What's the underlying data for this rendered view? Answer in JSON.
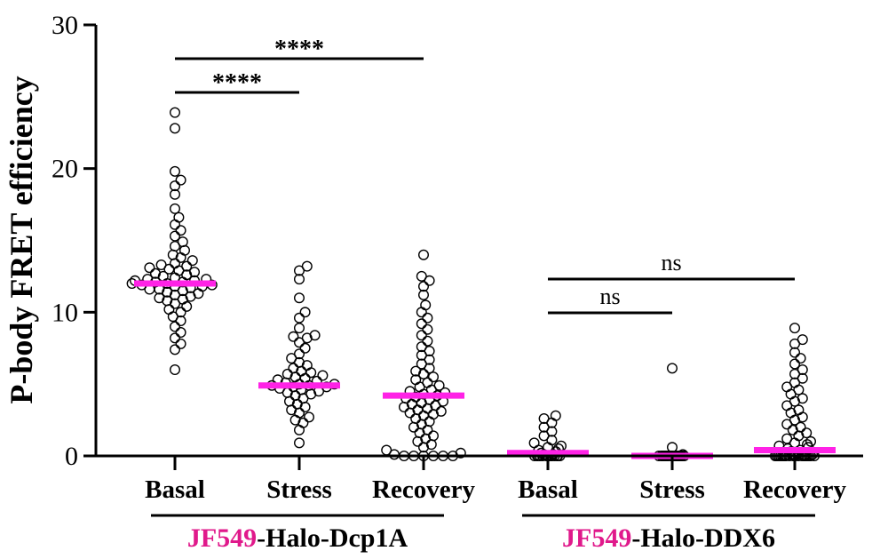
{
  "chart_data": {
    "type": "scatter",
    "subtype": "dot-plot-with-mean",
    "ylabel": "P-body FRET efficiency",
    "ylim": [
      0,
      30
    ],
    "yticks": [
      0,
      10,
      20,
      30
    ],
    "grid": false,
    "colors": {
      "points": "#000000",
      "mean": "#ff22e6",
      "accent": "#e0198b"
    },
    "categories": [
      "Basal",
      "Stress",
      "Recovery",
      "Basal",
      "Stress",
      "Recovery"
    ],
    "groups": [
      {
        "accent": "JF549",
        "rest": "-Halo-Dcp1A",
        "categories": [
          0,
          1,
          2
        ]
      },
      {
        "accent": "JF549",
        "rest": "-Halo-DDX6",
        "categories": [
          3,
          4,
          5
        ]
      }
    ],
    "series": [
      {
        "category": "Basal",
        "mean": 12.0,
        "spread": 9.0,
        "values": [
          23.9,
          22.8,
          19.8,
          19.2,
          18.8,
          18.2,
          17.2,
          16.6,
          16.1,
          15.7,
          15.3,
          14.9,
          14.6,
          14.3,
          14.0,
          13.8,
          13.6,
          13.4,
          13.3,
          13.2,
          13.1,
          13.0,
          12.9,
          12.8,
          12.7,
          12.6,
          12.5,
          12.4,
          12.3,
          12.3,
          12.2,
          12.2,
          12.1,
          12.1,
          12.0,
          12.0,
          11.9,
          11.9,
          11.8,
          11.8,
          11.7,
          11.6,
          11.6,
          11.5,
          11.4,
          11.3,
          11.2,
          11.1,
          11.0,
          10.9,
          10.8,
          10.6,
          10.4,
          10.2,
          10.0,
          9.7,
          9.4,
          9.0,
          8.6,
          8.2,
          7.8,
          7.4,
          6.0
        ]
      },
      {
        "category": "Stress",
        "mean": 4.9,
        "spread": 7.5,
        "values": [
          13.2,
          12.9,
          12.3,
          11.0,
          10.0,
          9.6,
          8.9,
          8.4,
          8.3,
          8.2,
          7.9,
          7.5,
          7.1,
          6.8,
          6.5,
          6.3,
          6.1,
          5.9,
          5.8,
          5.7,
          5.6,
          5.5,
          5.4,
          5.3,
          5.2,
          5.1,
          5.0,
          5.0,
          4.9,
          4.9,
          4.8,
          4.8,
          4.7,
          4.6,
          4.5,
          4.4,
          4.3,
          4.2,
          4.0,
          3.8,
          3.6,
          3.4,
          3.2,
          3.0,
          2.7,
          2.5,
          2.3,
          1.8,
          0.9
        ]
      },
      {
        "category": "Recovery",
        "mean": 4.2,
        "spread": 10.0,
        "values": [
          14.0,
          12.5,
          12.2,
          11.8,
          11.2,
          10.5,
          10.0,
          9.6,
          9.2,
          8.8,
          8.4,
          8.0,
          7.6,
          7.3,
          7.0,
          6.7,
          6.4,
          6.1,
          5.9,
          5.7,
          5.5,
          5.3,
          5.1,
          4.9,
          4.8,
          4.6,
          4.5,
          4.4,
          4.3,
          4.2,
          4.1,
          4.0,
          3.9,
          3.8,
          3.7,
          3.6,
          3.5,
          3.4,
          3.3,
          3.2,
          3.1,
          3.0,
          2.9,
          2.8,
          2.6,
          2.4,
          2.2,
          2.0,
          1.8,
          1.6,
          1.4,
          1.2,
          1.0,
          0.8,
          0.6,
          0.4,
          0.2,
          0.1,
          0.0,
          0.0,
          0.0,
          0.0,
          0.0,
          0.0
        ]
      },
      {
        "category": "Basal",
        "mean": 0.2,
        "spread": 3.0,
        "values": [
          2.8,
          2.6,
          2.3,
          2.0,
          1.7,
          1.4,
          1.1,
          0.9,
          0.7,
          0.6,
          0.5,
          0.4,
          0.3,
          0.2,
          0.1,
          0.1,
          0.0,
          0.0,
          0.0,
          0.0,
          0.0,
          0.0,
          0.0,
          0.0,
          0.0,
          0.0,
          0.0,
          0.0,
          0.0,
          0.0
        ]
      },
      {
        "category": "Stress",
        "mean": 0.0,
        "spread": 3.0,
        "values": [
          6.1,
          0.6,
          0.1,
          0.0,
          0.0,
          0.0,
          0.0,
          0.0,
          0.0,
          0.0,
          0.0,
          0.0,
          0.0,
          0.0,
          0.0,
          0.0,
          0.0,
          0.0,
          0.0,
          0.0,
          0.0,
          0.0
        ]
      },
      {
        "category": "Recovery",
        "mean": 0.4,
        "spread": 4.0,
        "values": [
          8.9,
          8.1,
          7.8,
          7.2,
          6.8,
          6.4,
          6.0,
          5.7,
          5.4,
          5.1,
          4.8,
          4.6,
          4.3,
          4.0,
          3.8,
          3.5,
          3.2,
          3.0,
          2.7,
          2.5,
          2.2,
          2.0,
          1.8,
          1.6,
          1.4,
          1.2,
          1.0,
          0.9,
          0.8,
          0.7,
          0.6,
          0.5,
          0.4,
          0.3,
          0.2,
          0.1,
          0.1,
          0.0,
          0.0,
          0.0,
          0.0,
          0.0,
          0.0,
          0.0,
          0.0,
          0.0,
          0.0,
          0.0,
          0.0,
          0.0,
          0.0,
          0.0,
          0.0,
          0.0,
          0.0,
          0.0,
          0.0,
          0.0
        ]
      }
    ],
    "comparisons": [
      {
        "from": 0,
        "to": 1,
        "level": 1,
        "label": "****"
      },
      {
        "from": 0,
        "to": 2,
        "level": 2,
        "label": "****"
      },
      {
        "from": 3,
        "to": 4,
        "level": 1,
        "label": "ns"
      },
      {
        "from": 3,
        "to": 5,
        "level": 2,
        "label": "ns"
      }
    ]
  }
}
